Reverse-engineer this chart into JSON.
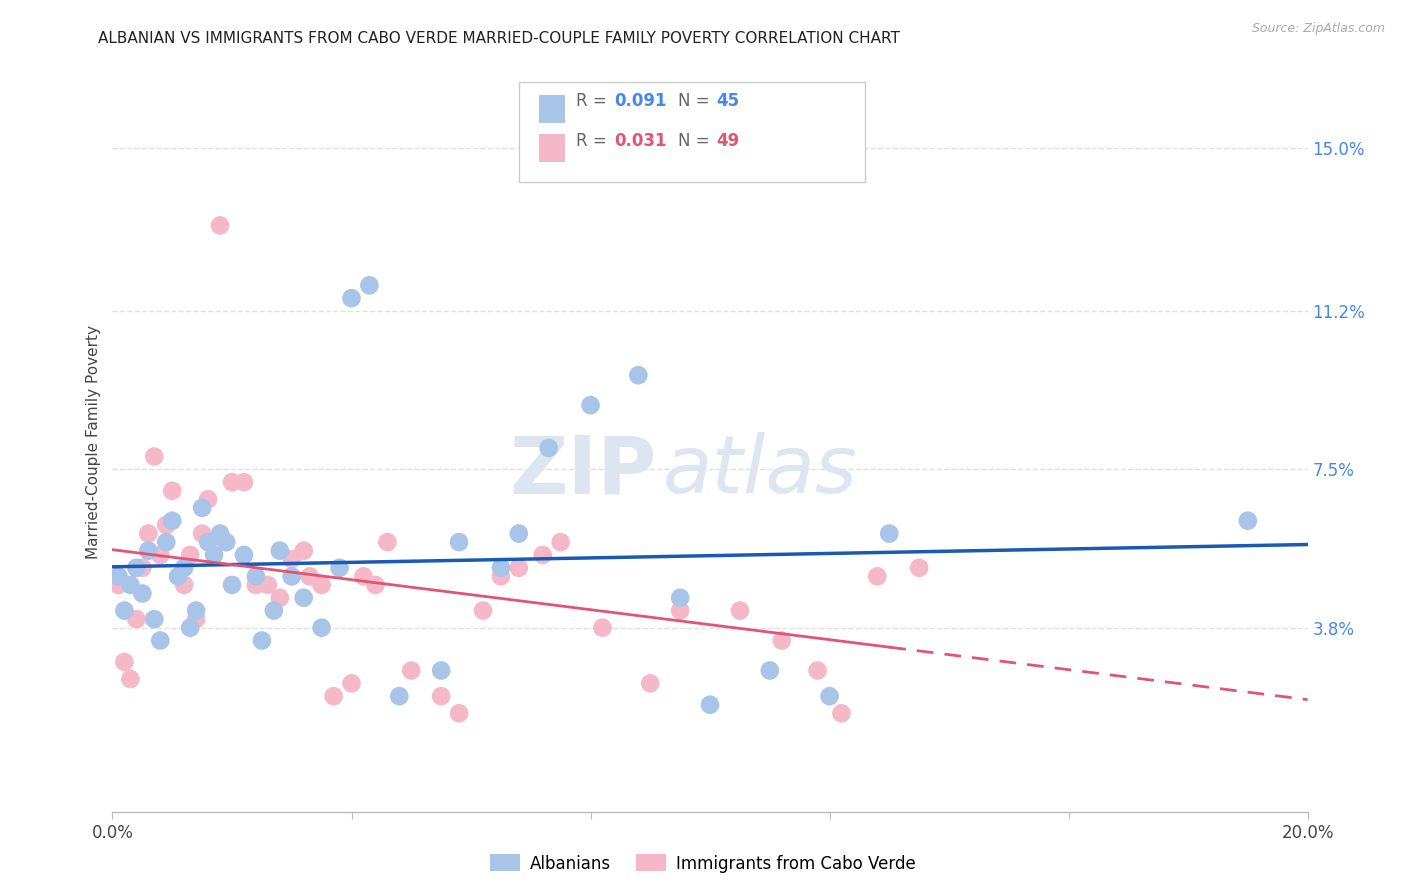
{
  "title": "ALBANIAN VS IMMIGRANTS FROM CABO VERDE MARRIED-COUPLE FAMILY POVERTY CORRELATION CHART",
  "source": "Source: ZipAtlas.com",
  "ylabel": "Married-Couple Family Poverty",
  "xmin": 0.0,
  "xmax": 0.2,
  "ymin": -0.005,
  "ymax": 0.168,
  "yticks": [
    0.038,
    0.075,
    0.112,
    0.15
  ],
  "ytick_labels": [
    "3.8%",
    "7.5%",
    "11.2%",
    "15.0%"
  ],
  "albanians_label": "Albanians",
  "cabo_verde_label": "Immigrants from Cabo Verde",
  "albanians_color": "#a8c4e8",
  "cabo_verde_color": "#f5b8c8",
  "albanians_line_color": "#1a5ab5",
  "cabo_verde_line_color": "#e05575",
  "albanians_R": 0.091,
  "albanians_N": 45,
  "cabo_verde_R": 0.031,
  "cabo_verde_N": 49,
  "albanians_x": [
    0.001,
    0.002,
    0.003,
    0.004,
    0.005,
    0.006,
    0.007,
    0.008,
    0.009,
    0.01,
    0.011,
    0.012,
    0.013,
    0.014,
    0.015,
    0.016,
    0.017,
    0.018,
    0.019,
    0.02,
    0.022,
    0.024,
    0.025,
    0.027,
    0.028,
    0.03,
    0.032,
    0.035,
    0.038,
    0.04,
    0.043,
    0.048,
    0.055,
    0.058,
    0.065,
    0.068,
    0.073,
    0.08,
    0.088,
    0.095,
    0.1,
    0.11,
    0.12,
    0.13,
    0.19
  ],
  "albanians_y": [
    0.05,
    0.042,
    0.048,
    0.052,
    0.046,
    0.056,
    0.04,
    0.035,
    0.058,
    0.063,
    0.05,
    0.052,
    0.038,
    0.042,
    0.066,
    0.058,
    0.055,
    0.06,
    0.058,
    0.048,
    0.055,
    0.05,
    0.035,
    0.042,
    0.056,
    0.05,
    0.045,
    0.038,
    0.052,
    0.115,
    0.118,
    0.022,
    0.028,
    0.058,
    0.052,
    0.06,
    0.08,
    0.09,
    0.097,
    0.045,
    0.02,
    0.028,
    0.022,
    0.06,
    0.063
  ],
  "cabo_verde_x": [
    0.001,
    0.002,
    0.003,
    0.004,
    0.005,
    0.006,
    0.007,
    0.008,
    0.009,
    0.01,
    0.011,
    0.012,
    0.013,
    0.014,
    0.015,
    0.016,
    0.018,
    0.019,
    0.02,
    0.022,
    0.024,
    0.026,
    0.028,
    0.03,
    0.032,
    0.033,
    0.035,
    0.037,
    0.04,
    0.042,
    0.044,
    0.046,
    0.05,
    0.055,
    0.058,
    0.062,
    0.065,
    0.068,
    0.072,
    0.075,
    0.082,
    0.09,
    0.095,
    0.105,
    0.112,
    0.118,
    0.122,
    0.128,
    0.135
  ],
  "cabo_verde_y": [
    0.048,
    0.03,
    0.026,
    0.04,
    0.052,
    0.06,
    0.078,
    0.055,
    0.062,
    0.07,
    0.05,
    0.048,
    0.055,
    0.04,
    0.06,
    0.068,
    0.132,
    0.058,
    0.072,
    0.072,
    0.048,
    0.048,
    0.045,
    0.054,
    0.056,
    0.05,
    0.048,
    0.022,
    0.025,
    0.05,
    0.048,
    0.058,
    0.028,
    0.022,
    0.018,
    0.042,
    0.05,
    0.052,
    0.055,
    0.058,
    0.038,
    0.025,
    0.042,
    0.042,
    0.035,
    0.028,
    0.018,
    0.05,
    0.052
  ],
  "watermark_zip": "ZIP",
  "watermark_atlas": "atlas",
  "background_color": "#ffffff",
  "grid_color": "#e0e0e0",
  "legend_box_color": "#cccccc",
  "text_color_dark": "#333333",
  "text_color_blue": "#4488ee",
  "text_color_pink": "#e05575"
}
